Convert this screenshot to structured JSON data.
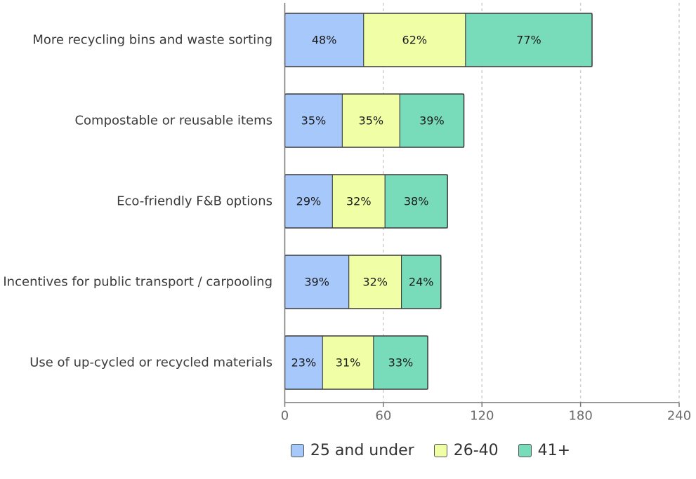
{
  "chart_data": {
    "type": "bar",
    "orientation": "horizontal",
    "stacked": true,
    "categories": [
      "More recycling bins and waste sorting",
      "Compostable or reusable items",
      "Eco-friendly F&B options",
      "Incentives for public transport / carpooling",
      "Use of up-cycled or recycled materials"
    ],
    "series": [
      {
        "name": "25 and under",
        "values": [
          48,
          35,
          29,
          39,
          23
        ],
        "color": "#a7c8fb"
      },
      {
        "name": "26-40",
        "values": [
          62,
          35,
          32,
          32,
          31
        ],
        "color": "#f0ffa5"
      },
      {
        "name": "41+",
        "values": [
          77,
          39,
          38,
          24,
          33
        ],
        "color": "#78dcbb"
      }
    ],
    "value_suffix": "%",
    "xlim": [
      0,
      240
    ],
    "xticks": [
      0,
      60,
      120,
      180,
      240
    ],
    "grid": "vertical-dashed",
    "legend_position": "bottom"
  }
}
